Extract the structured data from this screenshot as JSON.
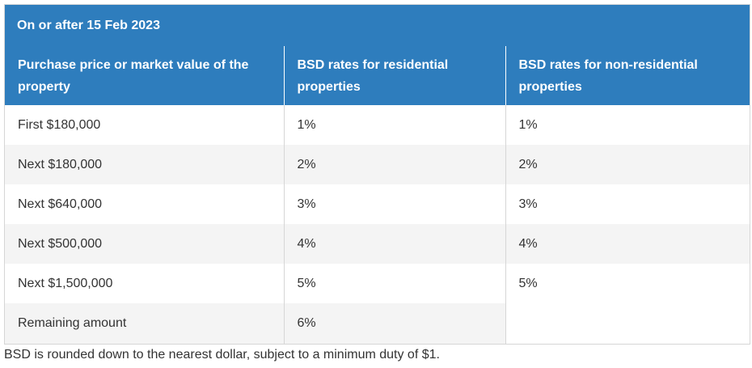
{
  "table": {
    "caption": "On or after 15 Feb 2023",
    "headers": [
      "Purchase price or market value of the property",
      "BSD rates for residential properties",
      "BSD rates for non-residential properties"
    ],
    "rows": [
      [
        "First $180,000",
        "1%",
        "1%"
      ],
      [
        "Next $180,000",
        "2%",
        "2%"
      ],
      [
        "Next $640,000",
        "3%",
        "3%"
      ],
      [
        "Next $500,000",
        "4%",
        "4%"
      ],
      [
        "Next $1,500,000",
        "5%",
        "5%"
      ],
      [
        "Remaining amount",
        "6%",
        ""
      ]
    ]
  },
  "footnote": "BSD is rounded down to the nearest dollar, subject to a minimum duty of $1.",
  "colors": {
    "header_bg": "#2e7dbd",
    "header_text": "#ffffff",
    "stripe_bg": "#f4f4f4",
    "border": "#d6d6d6"
  }
}
